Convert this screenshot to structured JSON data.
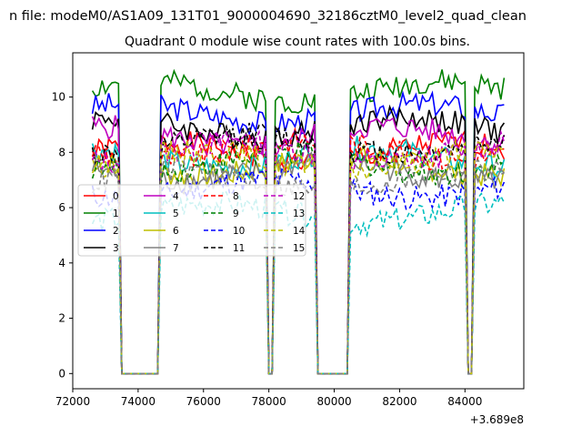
{
  "chart_data": {
    "type": "line",
    "suptitle": "n file: modeM0/AS1A09_131T01_9000004690_32186cztM0_level2_quad_clean",
    "title": "Quadrant 0 module wise count rates with 100.0s bins.",
    "xlabel": "",
    "ylabel": "",
    "offset_label": "+3.689e8",
    "xlim": [
      72000,
      85800
    ],
    "ylim": [
      -0.55,
      11.6
    ],
    "x_ticks": [
      72000,
      74000,
      76000,
      78000,
      80000,
      82000,
      84000
    ],
    "x_tick_labels": [
      "72000",
      "74000",
      "76000",
      "78000",
      "80000",
      "82000",
      "84000"
    ],
    "y_ticks": [
      0,
      2,
      4,
      6,
      8,
      10
    ],
    "y_tick_labels": [
      "0",
      "2",
      "4",
      "6",
      "8",
      "10"
    ],
    "grid": false,
    "legend_position": "center-left",
    "legend_columns": 4,
    "x_start": 72600,
    "bin_size": 100,
    "good_intervals": [
      [
        72600,
        73400
      ],
      [
        74700,
        77900
      ],
      [
        78200,
        79400
      ],
      [
        80500,
        84000
      ],
      [
        84300,
        85200
      ]
    ],
    "series": [
      {
        "name": "0",
        "color": "#ff0000",
        "dash": "solid",
        "level": 8.0
      },
      {
        "name": "1",
        "color": "#008000",
        "dash": "solid",
        "level": 10.2
      },
      {
        "name": "2",
        "color": "#0000ff",
        "dash": "solid",
        "level": 9.4
      },
      {
        "name": "3",
        "color": "#000000",
        "dash": "solid",
        "level": 8.9
      },
      {
        "name": "4",
        "color": "#bf00bf",
        "dash": "solid",
        "level": 8.6
      },
      {
        "name": "5",
        "color": "#00bfbf",
        "dash": "solid",
        "level": 7.8
      },
      {
        "name": "6",
        "color": "#bfbf00",
        "dash": "solid",
        "level": 7.5
      },
      {
        "name": "7",
        "color": "#808080",
        "dash": "solid",
        "level": 7.3
      },
      {
        "name": "8",
        "color": "#ff0000",
        "dash": "dashed",
        "level": 8.1
      },
      {
        "name": "9",
        "color": "#008000",
        "dash": "dashed",
        "level": 7.6
      },
      {
        "name": "10",
        "color": "#0000ff",
        "dash": "dashed",
        "level": 6.7
      },
      {
        "name": "11",
        "color": "#000000",
        "dash": "dashed",
        "level": 8.3
      },
      {
        "name": "12",
        "color": "#bf00bf",
        "dash": "dashed",
        "level": 8.0
      },
      {
        "name": "13",
        "color": "#00bfbf",
        "dash": "dashed",
        "level": 5.8
      },
      {
        "name": "14",
        "color": "#bfbf00",
        "dash": "dashed",
        "level": 7.7
      },
      {
        "name": "15",
        "color": "#808080",
        "dash": "dashed",
        "level": 7.0
      }
    ]
  }
}
